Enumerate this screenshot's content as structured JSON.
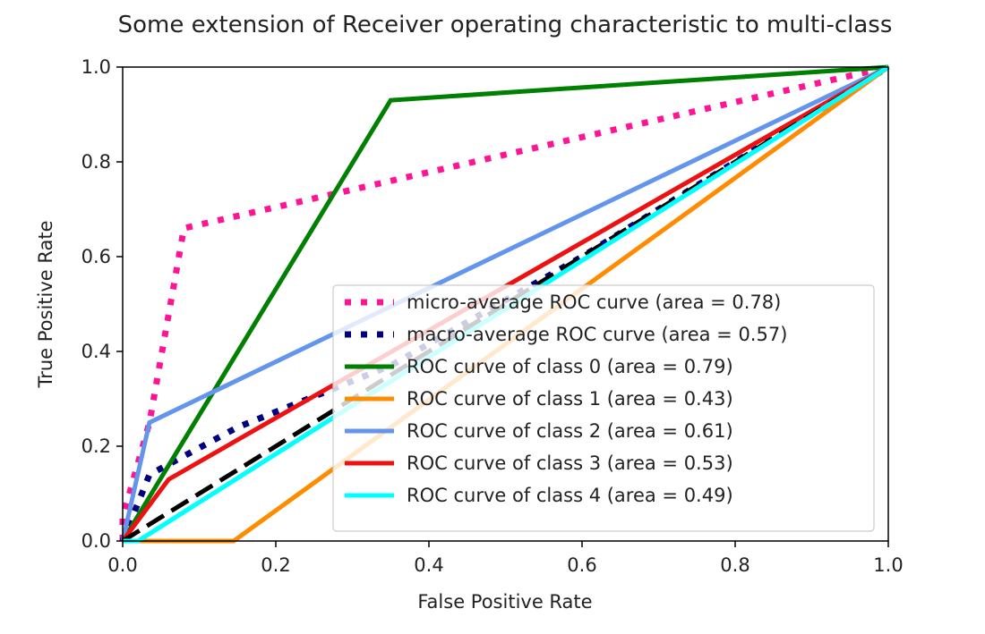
{
  "chart_data": {
    "type": "line",
    "title": "Some extension of Receiver operating characteristic to multi-class",
    "xlabel": "False Positive Rate",
    "ylabel": "True Positive Rate",
    "xlim": [
      0.0,
      1.0
    ],
    "ylim": [
      0.0,
      1.0
    ],
    "xticks": [
      "0.0",
      "0.2",
      "0.4",
      "0.6",
      "0.8",
      "1.0"
    ],
    "yticks": [
      "0.0",
      "0.2",
      "0.4",
      "0.6",
      "0.8",
      "1.0"
    ],
    "legend_position": "lower-right",
    "series": [
      {
        "name": "micro-average ROC curve (area = 0.78)",
        "color": "#ff1493",
        "style": "dotted",
        "points": [
          [
            0.0,
            0.0
          ],
          [
            0.0,
            0.05
          ],
          [
            0.035,
            0.25
          ],
          [
            0.08,
            0.66
          ],
          [
            1.0,
            1.0
          ]
        ]
      },
      {
        "name": "macro-average ROC curve (area = 0.57)",
        "color": "#000080",
        "style": "dotted",
        "points": [
          [
            0.0,
            0.0
          ],
          [
            0.035,
            0.14
          ],
          [
            0.15,
            0.24
          ],
          [
            0.35,
            0.37
          ],
          [
            0.6,
            0.6
          ],
          [
            1.0,
            1.0
          ]
        ]
      },
      {
        "name": "ROC curve of class 0 (area = 0.79)",
        "color": "#008000",
        "style": "solid",
        "points": [
          [
            0.0,
            0.0
          ],
          [
            0.35,
            0.93
          ],
          [
            1.0,
            1.0
          ]
        ]
      },
      {
        "name": "ROC curve of class 1 (area = 0.43)",
        "color": "#ff8c00",
        "style": "solid",
        "points": [
          [
            0.0,
            0.0
          ],
          [
            0.145,
            0.0
          ],
          [
            1.0,
            1.0
          ]
        ]
      },
      {
        "name": "ROC curve of class 2 (area = 0.61)",
        "color": "#6495ed",
        "style": "solid",
        "points": [
          [
            0.0,
            0.0
          ],
          [
            0.035,
            0.25
          ],
          [
            1.0,
            1.0
          ]
        ]
      },
      {
        "name": "ROC curve of class 3 (area = 0.53)",
        "color": "#ee1111",
        "style": "solid",
        "points": [
          [
            0.0,
            0.0
          ],
          [
            0.06,
            0.13
          ],
          [
            1.0,
            1.0
          ]
        ]
      },
      {
        "name": "ROC curve of class 4 (area = 0.49)",
        "color": "#00ffff",
        "style": "solid",
        "points": [
          [
            0.0,
            0.0
          ],
          [
            0.02,
            0.0
          ],
          [
            1.0,
            1.0
          ]
        ]
      }
    ],
    "reference_line": {
      "color": "#000000",
      "style": "dashed",
      "points": [
        [
          0.0,
          0.0
        ],
        [
          1.0,
          1.0
        ]
      ]
    }
  }
}
